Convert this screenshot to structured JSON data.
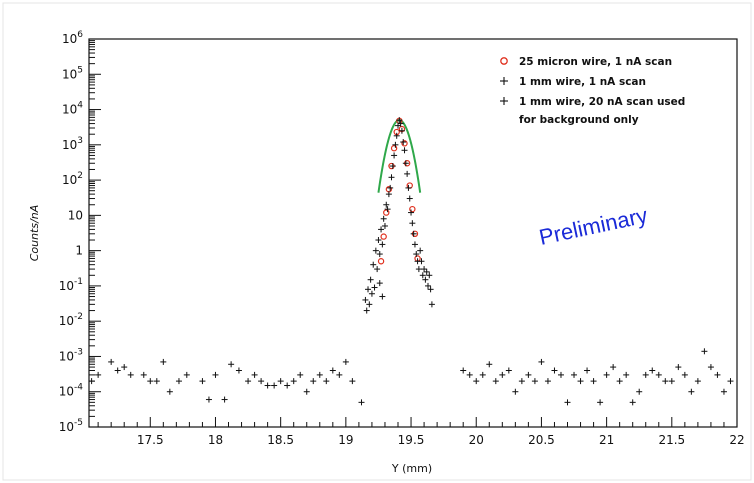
{
  "chart_data": {
    "type": "scatter",
    "xlabel": "Y (mm)",
    "ylabel": "Counts/nA",
    "xlim": [
      17.03,
      22
    ],
    "ylog": true,
    "ylim": [
      1e-05,
      1000000.0
    ],
    "x_ticks": [
      17.5,
      18,
      18.5,
      19,
      19.5,
      20,
      20.5,
      21,
      21.5,
      22
    ],
    "x_tick_labels": [
      "17.5",
      "18",
      "18.5",
      "19",
      "19.5",
      "20",
      "20.5",
      "21",
      "21.5",
      "22"
    ],
    "y_ticks": [
      {
        "v": 1000000.0,
        "m": "10",
        "e": "6"
      },
      {
        "v": 100000.0,
        "m": "10",
        "e": "5"
      },
      {
        "v": 10000.0,
        "m": "10",
        "e": "4"
      },
      {
        "v": 1000.0,
        "m": "10",
        "e": "3"
      },
      {
        "v": 100.0,
        "m": "10",
        "e": "2"
      },
      {
        "v": 10,
        "m": "10",
        "e": ""
      },
      {
        "v": 1,
        "m": "1",
        "e": ""
      },
      {
        "v": 0.1,
        "m": "10",
        "e": "-1"
      },
      {
        "v": 0.01,
        "m": "10",
        "e": "-2"
      },
      {
        "v": 0.001,
        "m": "10",
        "e": "-3"
      },
      {
        "v": 0.0001,
        "m": "10",
        "e": "-4"
      },
      {
        "v": 1e-05,
        "m": "10",
        "e": "-5"
      }
    ],
    "annotation": "Preliminary",
    "legend": [
      "25 micron wire, 1 nA scan",
      "1 mm wire, 1 nA scan",
      "1 mm wire, 20 nA scan used",
      "for background only"
    ],
    "fit": {
      "name": "Gaussian fit",
      "color": "#2fa84a",
      "amplitude": 5000,
      "mean": 19.41,
      "sigma": 0.052
    },
    "series": [
      {
        "name": "25 micron wire, 1 nA scan",
        "marker": "circle",
        "color": "#e0301e",
        "points": [
          [
            19.27,
            0.5
          ],
          [
            19.29,
            2.5
          ],
          [
            19.31,
            12
          ],
          [
            19.33,
            55
          ],
          [
            19.35,
            250
          ],
          [
            19.37,
            800
          ],
          [
            19.39,
            2300
          ],
          [
            19.41,
            4800
          ],
          [
            19.43,
            2800
          ],
          [
            19.45,
            1100
          ],
          [
            19.47,
            300
          ],
          [
            19.49,
            70
          ],
          [
            19.51,
            15
          ],
          [
            19.53,
            3
          ],
          [
            19.55,
            0.6
          ]
        ]
      },
      {
        "name": "1 mm wire, 1 nA scan",
        "marker": "plus",
        "color": "#111111",
        "points": [
          [
            19.15,
            0.04
          ],
          [
            19.16,
            0.02
          ],
          [
            19.17,
            0.08
          ],
          [
            19.18,
            0.03
          ],
          [
            19.19,
            0.15
          ],
          [
            19.2,
            0.06
          ],
          [
            19.21,
            0.4
          ],
          [
            19.22,
            0.09
          ],
          [
            19.23,
            1
          ],
          [
            19.24,
            0.3
          ],
          [
            19.25,
            2
          ],
          [
            19.26,
            0.8
          ],
          [
            19.27,
            4
          ],
          [
            19.28,
            1.5
          ],
          [
            19.29,
            8
          ],
          [
            19.3,
            5
          ],
          [
            19.31,
            20
          ],
          [
            19.32,
            15
          ],
          [
            19.33,
            40
          ],
          [
            19.34,
            60
          ],
          [
            19.35,
            120
          ],
          [
            19.36,
            250
          ],
          [
            19.37,
            500
          ],
          [
            19.38,
            1000
          ],
          [
            19.39,
            1800
          ],
          [
            19.4,
            3500
          ],
          [
            19.41,
            5000
          ],
          [
            19.42,
            4000
          ],
          [
            19.43,
            2500
          ],
          [
            19.44,
            1200
          ],
          [
            19.45,
            700
          ],
          [
            19.46,
            300
          ],
          [
            19.47,
            150
          ],
          [
            19.48,
            60
          ],
          [
            19.49,
            30
          ],
          [
            19.5,
            12
          ],
          [
            19.51,
            6
          ],
          [
            19.52,
            3
          ],
          [
            19.53,
            1.5
          ],
          [
            19.54,
            0.8
          ],
          [
            19.55,
            0.5
          ],
          [
            19.56,
            0.3
          ],
          [
            19.57,
            1
          ],
          [
            19.58,
            0.5
          ],
          [
            19.59,
            0.2
          ],
          [
            19.6,
            0.3
          ],
          [
            19.61,
            0.15
          ],
          [
            19.62,
            0.25
          ],
          [
            19.63,
            0.1
          ],
          [
            19.64,
            0.2
          ],
          [
            19.65,
            0.08
          ],
          [
            19.66,
            0.03
          ],
          [
            19.26,
            0.12
          ],
          [
            19.28,
            0.05
          ]
        ]
      },
      {
        "name": "1 mm wire, 20 nA scan used for background only",
        "marker": "plus",
        "color": "#111111",
        "points": [
          [
            17.05,
            0.0002
          ],
          [
            17.1,
            0.0003
          ],
          [
            17.2,
            0.0007
          ],
          [
            17.25,
            0.0004
          ],
          [
            17.3,
            0.0005
          ],
          [
            17.35,
            0.0003
          ],
          [
            17.45,
            0.0003
          ],
          [
            17.5,
            0.0002
          ],
          [
            17.55,
            0.0002
          ],
          [
            17.6,
            0.0007
          ],
          [
            17.65,
            0.0001
          ],
          [
            17.72,
            0.0002
          ],
          [
            17.78,
            0.0003
          ],
          [
            17.9,
            0.0002
          ],
          [
            17.95,
            6e-05
          ],
          [
            18.0,
            0.0003
          ],
          [
            18.07,
            6e-05
          ],
          [
            18.12,
            0.0006
          ],
          [
            18.18,
            0.0004
          ],
          [
            18.25,
            0.0002
          ],
          [
            18.3,
            0.0003
          ],
          [
            18.35,
            0.0002
          ],
          [
            18.4,
            0.00015
          ],
          [
            18.45,
            0.00015
          ],
          [
            18.5,
            0.0002
          ],
          [
            18.55,
            0.00015
          ],
          [
            18.6,
            0.0002
          ],
          [
            18.65,
            0.0003
          ],
          [
            18.7,
            0.0001
          ],
          [
            18.75,
            0.0002
          ],
          [
            18.8,
            0.0003
          ],
          [
            18.85,
            0.0002
          ],
          [
            18.9,
            0.0004
          ],
          [
            18.95,
            0.0003
          ],
          [
            19.0,
            0.0007
          ],
          [
            19.05,
            0.0002
          ],
          [
            19.12,
            5e-05
          ],
          [
            19.9,
            0.0004
          ],
          [
            19.95,
            0.0003
          ],
          [
            20.0,
            0.0002
          ],
          [
            20.05,
            0.0003
          ],
          [
            20.1,
            0.0006
          ],
          [
            20.15,
            0.0002
          ],
          [
            20.2,
            0.0003
          ],
          [
            20.25,
            0.0004
          ],
          [
            20.3,
            0.0001
          ],
          [
            20.35,
            0.0002
          ],
          [
            20.4,
            0.0003
          ],
          [
            20.45,
            0.0002
          ],
          [
            20.5,
            0.0007
          ],
          [
            20.55,
            0.0002
          ],
          [
            20.6,
            0.0004
          ],
          [
            20.65,
            0.0003
          ],
          [
            20.7,
            5e-05
          ],
          [
            20.75,
            0.0003
          ],
          [
            20.8,
            0.0002
          ],
          [
            20.85,
            0.0004
          ],
          [
            20.9,
            0.0002
          ],
          [
            20.95,
            5e-05
          ],
          [
            21.0,
            0.0003
          ],
          [
            21.05,
            0.0005
          ],
          [
            21.1,
            0.0002
          ],
          [
            21.15,
            0.0003
          ],
          [
            21.2,
            5e-05
          ],
          [
            21.25,
            0.0001
          ],
          [
            21.3,
            0.0003
          ],
          [
            21.35,
            0.0004
          ],
          [
            21.4,
            0.0003
          ],
          [
            21.45,
            0.0002
          ],
          [
            21.5,
            0.0002
          ],
          [
            21.55,
            0.0005
          ],
          [
            21.6,
            0.0003
          ],
          [
            21.65,
            0.0001
          ],
          [
            21.7,
            0.0002
          ],
          [
            21.75,
            0.0014
          ],
          [
            21.8,
            0.0005
          ],
          [
            21.85,
            0.0003
          ],
          [
            21.9,
            0.0001
          ],
          [
            21.95,
            0.0002
          ]
        ]
      }
    ]
  }
}
